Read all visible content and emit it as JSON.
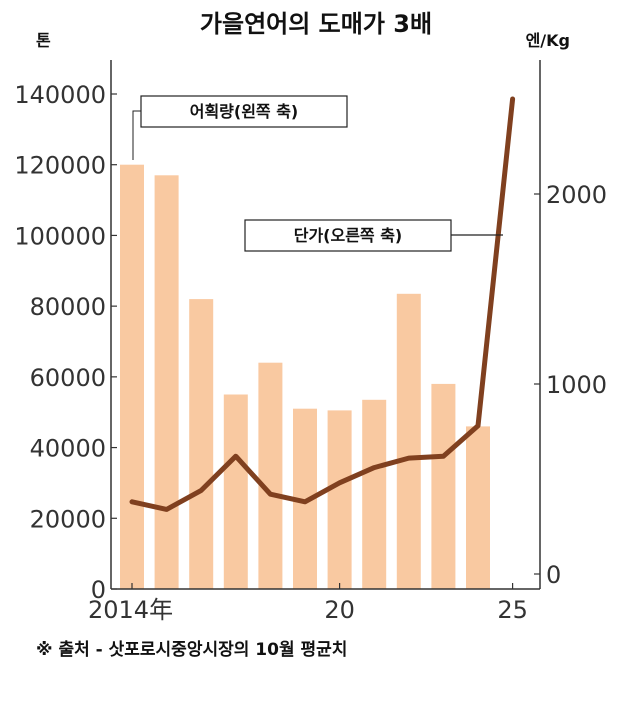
{
  "chart_data": {
    "type": "bar",
    "title": "가을연어의 도매가 3배",
    "left_unit": "톤",
    "right_unit": "엔/Kg",
    "x": [
      2014,
      2015,
      2016,
      2017,
      2018,
      2019,
      2020,
      2021,
      2022,
      2023,
      2024,
      2025
    ],
    "xticks": [
      {
        "x": 2014,
        "label": "2014年"
      },
      {
        "x": 2020,
        "label": "20"
      },
      {
        "x": 2025,
        "label": "25"
      }
    ],
    "y_left_lim": [
      0,
      150000
    ],
    "y_left_ticks": [
      0,
      20000,
      40000,
      60000,
      80000,
      100000,
      120000,
      140000
    ],
    "y_right_lim": [
      0,
      2700
    ],
    "y_right_ticks": [
      0,
      1000,
      2000
    ],
    "bar_color": "#f9c9a1",
    "line_color": "#80401f",
    "series": [
      {
        "name": "어획량(왼쪽 축)",
        "type": "bar",
        "axis": "left",
        "values": [
          120000,
          117000,
          82000,
          55000,
          64000,
          51000,
          50500,
          53500,
          83500,
          58000,
          46000,
          null
        ]
      },
      {
        "name": "단가(오른쪽 축)",
        "type": "line",
        "axis": "right",
        "values": [
          380,
          340,
          440,
          620,
          420,
          380,
          480,
          560,
          610,
          620,
          780,
          2500
        ]
      }
    ],
    "annotations": [
      {
        "text": "어획량(왼쪽 축)",
        "target": "bar"
      },
      {
        "text": "단가(오른쪽 축)",
        "target": "line"
      }
    ],
    "source_note": "※ 출처 - 삿포로시중앙시장의  10월  평균치"
  }
}
